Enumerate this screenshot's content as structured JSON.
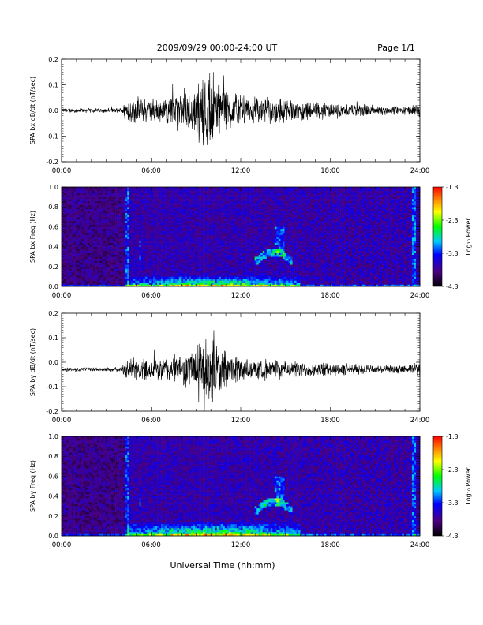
{
  "header": {
    "title": "2009/09/29  00:00-24:00 UT",
    "page": "Page 1/1"
  },
  "footer": {
    "xlabel": "Universal Time (hh:mm)"
  },
  "colors": {
    "trace": "#000000",
    "spectrogram_background": "#1b0b3a",
    "colormap": [
      "#000000",
      "#4b0082",
      "#0000ff",
      "#00c8ff",
      "#00ff00",
      "#ffff00",
      "#ff8000",
      "#ff0000"
    ]
  },
  "chart_data": [
    {
      "type": "line",
      "title": "",
      "ylabel": "SPA bx dB/dt (nT/sec)",
      "xlabel": "",
      "x_range_hours": [
        0,
        24
      ],
      "x_tick_labels": [
        "00:00",
        "06:00",
        "12:00",
        "18:00",
        "24:00"
      ],
      "ylim": [
        -0.2,
        0.2
      ],
      "y_tick_labels": [
        "0.2",
        "0.1",
        "0.0",
        "-0.1",
        "-0.2"
      ],
      "baseline": 0.0,
      "envelope": {
        "hours": [
          0,
          1,
          2,
          3,
          4,
          4.4,
          5,
          6,
          7,
          8,
          9,
          9.5,
          10,
          10.5,
          11,
          12,
          13,
          14,
          15,
          16,
          17,
          18,
          19,
          20,
          21,
          22,
          23,
          24
        ],
        "amplitude": [
          0.01,
          0.01,
          0.01,
          0.01,
          0.012,
          0.06,
          0.06,
          0.055,
          0.06,
          0.08,
          0.12,
          0.16,
          0.2,
          0.14,
          0.1,
          0.07,
          0.06,
          0.06,
          0.05,
          0.05,
          0.04,
          0.035,
          0.03,
          0.03,
          0.025,
          0.02,
          0.02,
          0.03
        ]
      }
    },
    {
      "type": "heatmap",
      "title": "",
      "ylabel": "SPA bx Freq (Hz)",
      "xlabel": "",
      "x_range_hours": [
        0,
        24
      ],
      "x_tick_labels": [
        "00:00",
        "06:00",
        "12:00",
        "18:00",
        "24:00"
      ],
      "ylim": [
        0,
        1.0
      ],
      "y_tick_labels": [
        "1.0",
        "0.8",
        "0.6",
        "0.4",
        "0.2",
        "0.0"
      ],
      "colorbar": {
        "label": "Log₁₀ Power",
        "range": [
          -4.3,
          -1.3
        ],
        "tick_labels": [
          "-1.3",
          "-2.3",
          "-3.3",
          "-4.3"
        ]
      },
      "features": [
        {
          "name": "pc1 band",
          "t_start": 13.0,
          "t_end": 15.5,
          "f_low": 0.2,
          "f_high": 0.6
        },
        {
          "name": "low-frequency enhancement",
          "t_start": 4.4,
          "t_end": 16.0,
          "f_low": 0.0,
          "f_high": 0.12
        }
      ]
    },
    {
      "type": "line",
      "title": "",
      "ylabel": "SPA by dB/dt (nT/sec)",
      "xlabel": "",
      "x_range_hours": [
        0,
        24
      ],
      "x_tick_labels": [
        "00:00",
        "06:00",
        "12:00",
        "18:00",
        "24:00"
      ],
      "ylim": [
        -0.2,
        0.2
      ],
      "y_tick_labels": [
        "0.2",
        "0.1",
        "0.0",
        "-0.1",
        "-0.2"
      ],
      "baseline": -0.03,
      "envelope": {
        "hours": [
          0,
          1,
          2,
          3,
          4,
          4.4,
          5,
          6,
          7,
          8,
          9,
          9.5,
          10,
          10.5,
          11,
          12,
          13,
          14,
          15,
          16,
          17,
          18,
          19,
          20,
          21,
          22,
          23,
          24
        ],
        "amplitude": [
          0.01,
          0.01,
          0.01,
          0.01,
          0.012,
          0.05,
          0.05,
          0.05,
          0.06,
          0.07,
          0.11,
          0.14,
          0.2,
          0.12,
          0.09,
          0.06,
          0.05,
          0.05,
          0.04,
          0.04,
          0.035,
          0.03,
          0.03,
          0.025,
          0.02,
          0.02,
          0.02,
          0.03
        ]
      }
    },
    {
      "type": "heatmap",
      "title": "",
      "ylabel": "SPA by Freq (Hz)",
      "xlabel": "",
      "x_range_hours": [
        0,
        24
      ],
      "x_tick_labels": [
        "00:00",
        "06:00",
        "12:00",
        "18:00",
        "24:00"
      ],
      "ylim": [
        0,
        1.0
      ],
      "y_tick_labels": [
        "1.0",
        "0.8",
        "0.6",
        "0.4",
        "0.2",
        "0.0"
      ],
      "colorbar": {
        "label": "Log₁₀ Power",
        "range": [
          -4.3,
          -1.3
        ],
        "tick_labels": [
          "-1.3",
          "-2.3",
          "-3.3",
          "-4.3"
        ]
      },
      "features": [
        {
          "name": "pc1 band",
          "t_start": 13.0,
          "t_end": 15.5,
          "f_low": 0.2,
          "f_high": 0.6
        },
        {
          "name": "low-frequency enhancement",
          "t_start": 4.4,
          "t_end": 16.0,
          "f_low": 0.0,
          "f_high": 0.15
        }
      ]
    }
  ]
}
